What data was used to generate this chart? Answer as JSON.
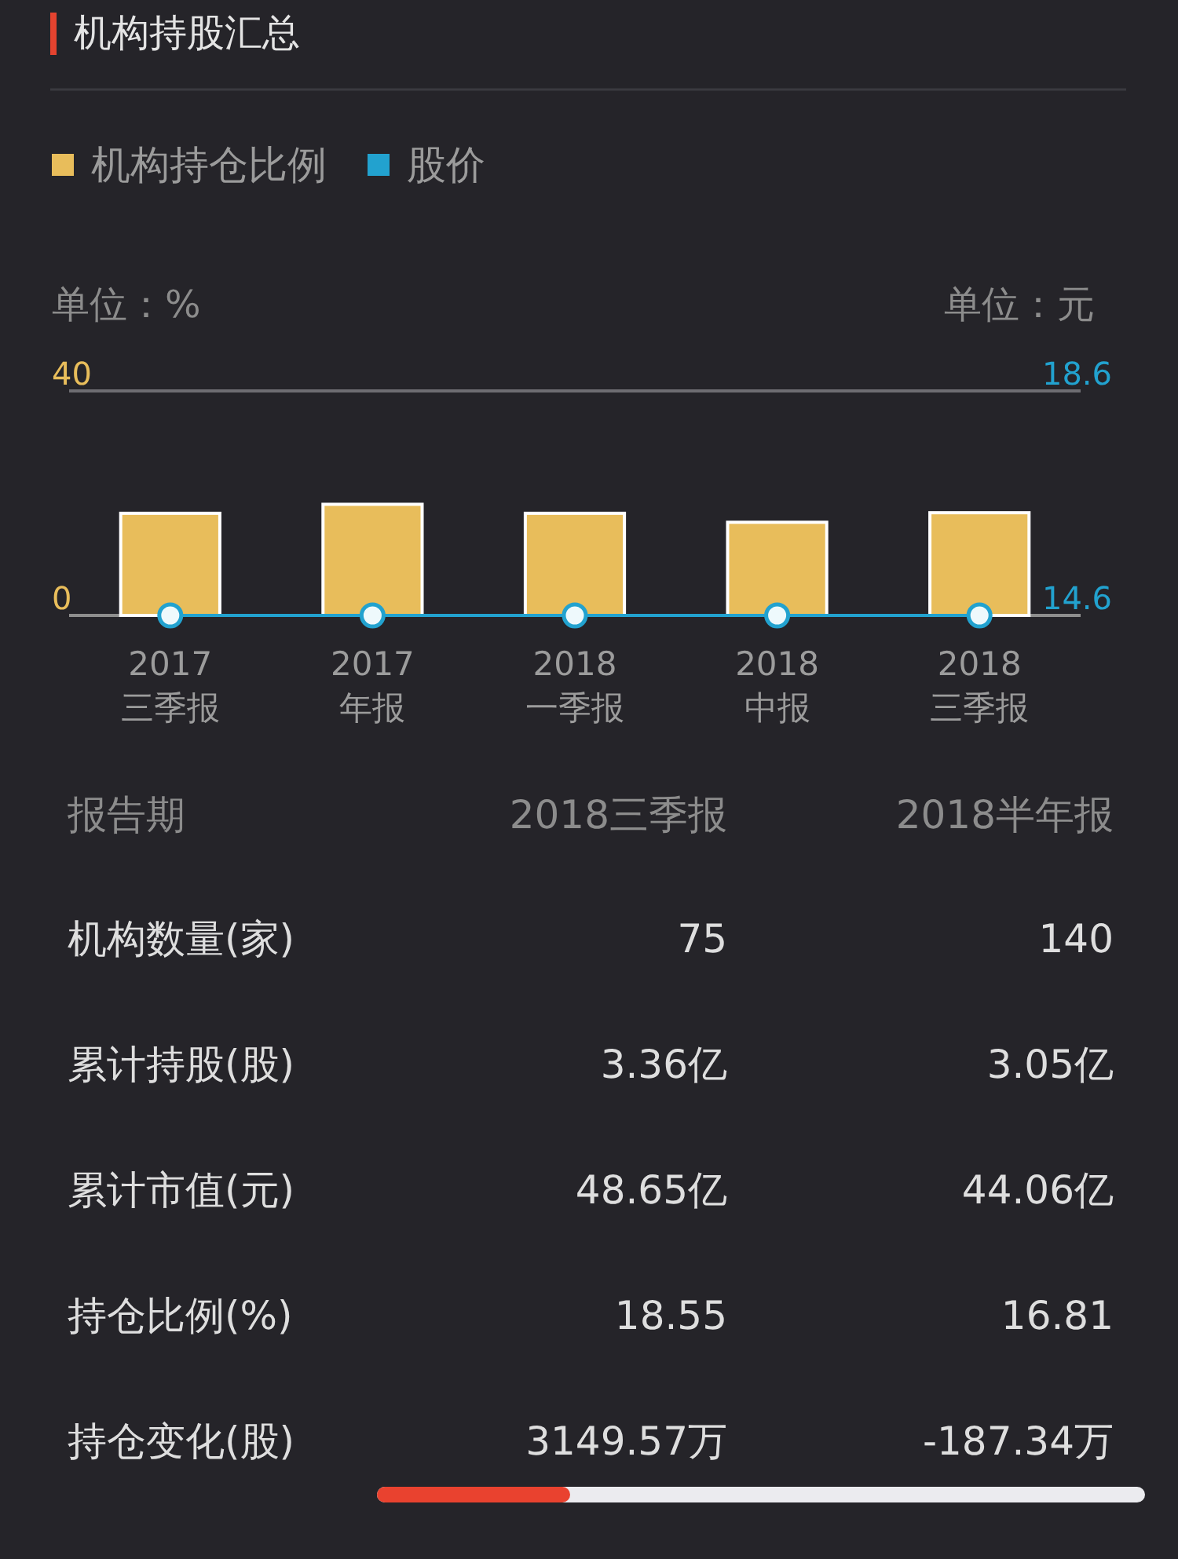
{
  "chart_data": [
    {
      "type": "bar",
      "title": "机构持股汇总",
      "ylabel": "单位：%",
      "y2label": "单位：元",
      "categories": [
        "2017\n三季报",
        "2017\n年报",
        "2018\n一季报",
        "2018\n中报",
        "2018\n三季报"
      ],
      "series": [
        {
          "name": "机构持仓比例",
          "color": "#e8bd5b",
          "values": [
            18.2,
            19.8,
            18.2,
            16.6,
            18.3
          ]
        },
        {
          "name": "股价",
          "type": "line",
          "axis": "y2",
          "color": "#22a2cf",
          "values": [
            14.6,
            14.6,
            14.6,
            14.6,
            14.6
          ]
        }
      ],
      "ylim": [
        0,
        40
      ],
      "yticks": [
        0,
        40
      ],
      "y2lim": [
        14.6,
        18.6
      ],
      "y2ticks": [
        14.6,
        18.6
      ],
      "legend": "top left",
      "marker": "circle"
    },
    {
      "type": "other",
      "ylabel": "报告期",
      "categories": [
        "2018三季报",
        "2018半年报"
      ],
      "y_categories": [
        "机构数量(家)",
        "累计持股(股)",
        "累计市值(元)",
        "持仓比例(%)",
        "持仓变化(股)"
      ],
      "cell_labels": [
        [
          "75",
          "140"
        ],
        [
          "3.36亿",
          "3.05亿"
        ],
        [
          "48.65亿",
          "44.06亿"
        ],
        [
          "18.55",
          "16.81"
        ],
        [
          "3149.57万",
          "-187.34万"
        ]
      ]
    }
  ]
}
